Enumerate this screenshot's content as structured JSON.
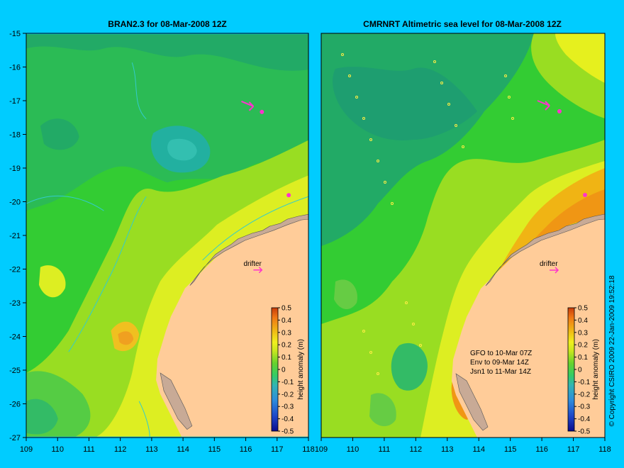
{
  "figure": {
    "background_color": "#00ccff",
    "copyright": "© Copyright CSIRO 2009   22-Jan-2009 19:52:18",
    "land_color": "#ffcc99",
    "coast_color": "#c8aa96",
    "contour_color": "#33cccc"
  },
  "panels": [
    {
      "title": "BRAN2.3 for 08-Mar-2008 12Z",
      "lon_ticks": [
        "109",
        "110",
        "111",
        "112",
        "113",
        "114",
        "115",
        "116",
        "117",
        "118"
      ],
      "lat_ticks": [
        "-15",
        "-16",
        "-17",
        "-18",
        "-19",
        "-20",
        "-21",
        "-22",
        "-23",
        "-24",
        "-25",
        "-26",
        "-27"
      ],
      "drifter_label": "drifter",
      "colorbar": {
        "label": "height anomaly (m)",
        "ticks": [
          "0.5",
          "0.4",
          "0.3",
          "0.2",
          "0.1",
          "0",
          "-0.1",
          "-0.2",
          "-0.3",
          "-0.4",
          "-0.5"
        ]
      },
      "annotations": []
    },
    {
      "title": "CMRNRT Altimetric sea level  for 08-Mar-2008 12Z",
      "lon_ticks": [
        "109",
        "110",
        "111",
        "112",
        "113",
        "114",
        "115",
        "116",
        "117",
        "118"
      ],
      "lat_ticks": [],
      "drifter_label": "drifter",
      "colorbar": {
        "label": "height anomaly (m)",
        "ticks": [
          "0.5",
          "0.4",
          "0.3",
          "0.2",
          "0.1",
          "0",
          "-0.1",
          "-0.2",
          "-0.3",
          "-0.4",
          "-0.5"
        ]
      },
      "annotations": [
        "GFO to 10-Mar 07Z",
        "Env to 09-Mar 14Z",
        "Jsn1 to 11-Mar 14Z"
      ]
    }
  ],
  "colorscale": [
    "#0a0a8c",
    "#1e46c8",
    "#2d8cdc",
    "#32b4b4",
    "#3cc8a0",
    "#33cc66",
    "#66d22d",
    "#a0dc1e",
    "#e6f01e",
    "#f0c814",
    "#f09614",
    "#e66e0a"
  ],
  "map_data": {
    "lon_range": [
      109,
      118
    ],
    "lat_range": [
      -27,
      -15
    ],
    "drifter_position": [
      117.4,
      -19.8
    ],
    "drifter_arrow_position": [
      116.6,
      -22.0
    ]
  }
}
